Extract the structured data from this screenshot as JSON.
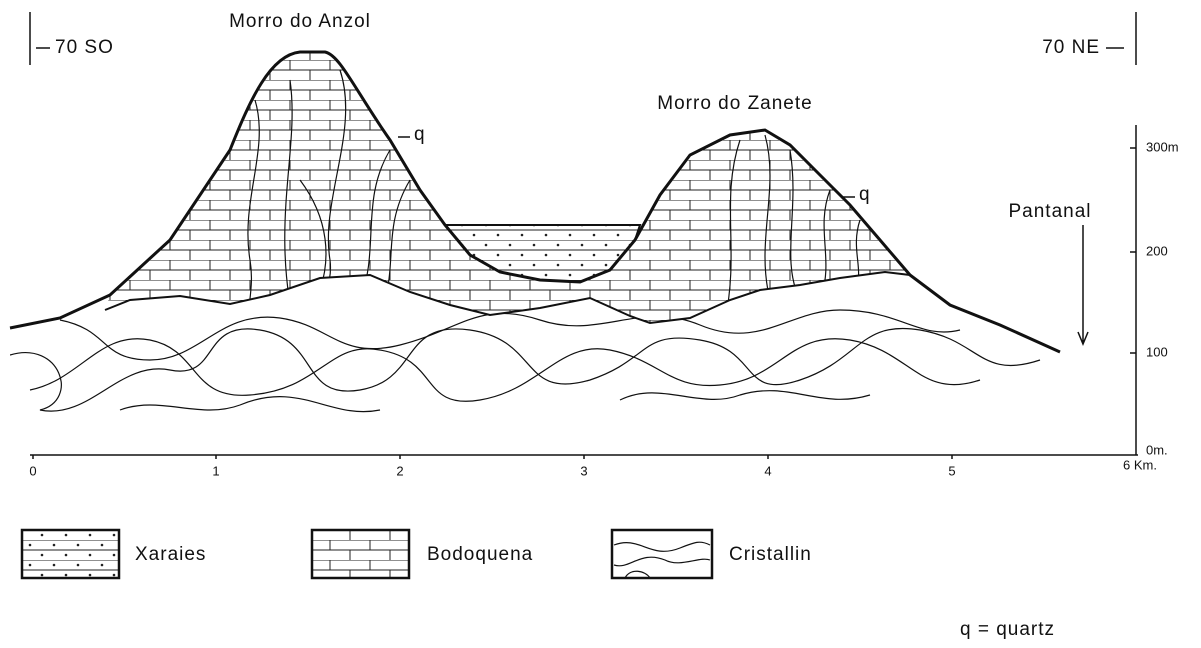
{
  "title_left": "Morro do Anzol",
  "title_right": "Morro do Zanete",
  "direction_left": "70 SO",
  "direction_right": "70 NE",
  "quartz_marks": [
    "q",
    "q"
  ],
  "place": "Pantanal",
  "x_axis": [
    "0",
    "1",
    "2",
    "3",
    "4",
    "5",
    "6 Km."
  ],
  "y_axis": [
    "0m.",
    "100",
    "200",
    "300m"
  ],
  "legend": [
    "Xaraies",
    "Bodoquena",
    "Cristallin"
  ],
  "note": "q = quartz"
}
